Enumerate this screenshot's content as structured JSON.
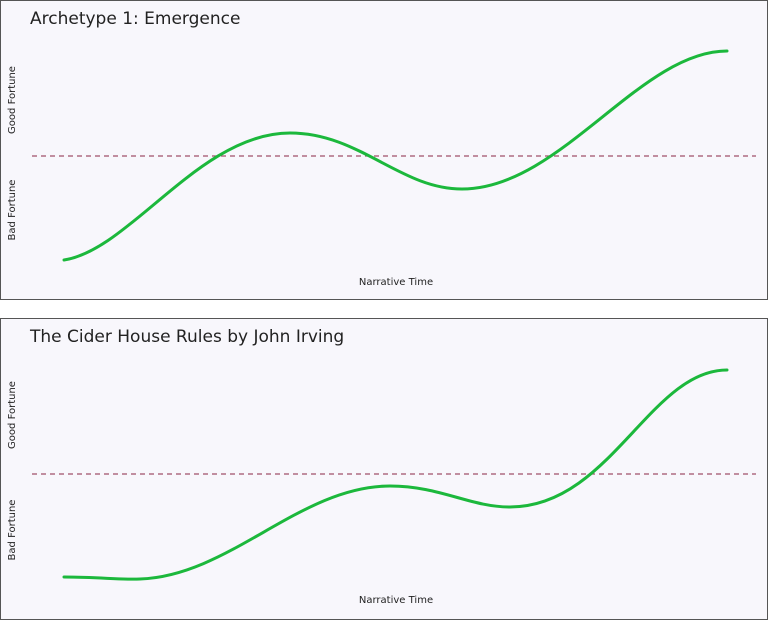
{
  "panels": [
    {
      "title": "Archetype 1: Emergence",
      "y_top_label": "Good Fortune",
      "y_bottom_label": "Bad Fortune",
      "x_label": "Narrative Time"
    },
    {
      "title": "The Cider House Rules by John Irving",
      "y_top_label": "Good Fortune",
      "y_bottom_label": "Bad Fortune",
      "x_label": "Narrative Time"
    }
  ]
}
